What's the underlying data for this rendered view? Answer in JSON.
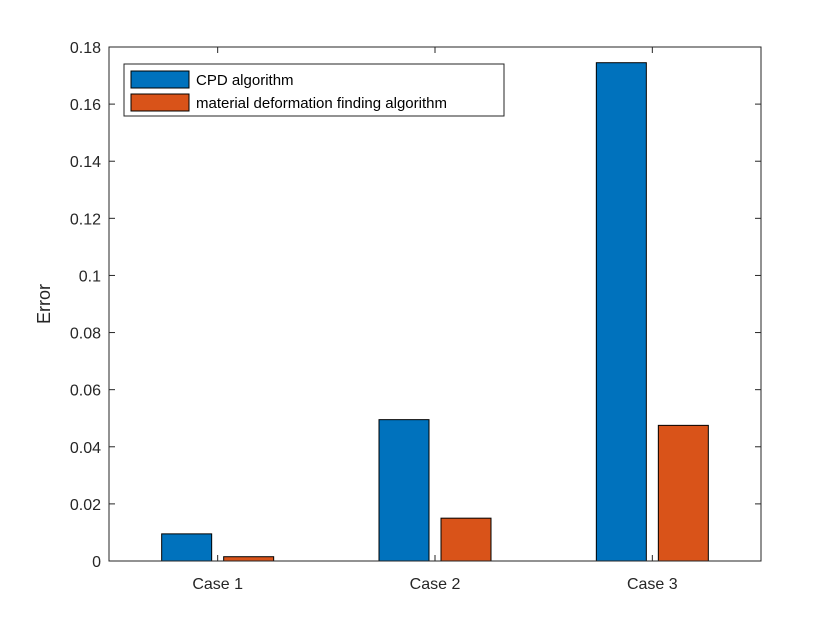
{
  "chart_data": {
    "type": "bar",
    "title": "",
    "xlabel": "",
    "ylabel": "Error",
    "categories": [
      "Case 1",
      "Case 2",
      "Case 3"
    ],
    "series": [
      {
        "name": "CPD algorithm",
        "color": "#0072BD",
        "values": [
          0.0095,
          0.0495,
          0.1745
        ]
      },
      {
        "name": "material deformation finding algorithm",
        "color": "#D95319",
        "values": [
          0.0015,
          0.015,
          0.0475
        ]
      }
    ],
    "ylim": [
      0,
      0.18
    ],
    "yticks": [
      "0",
      "0.02",
      "0.04",
      "0.06",
      "0.08",
      "0.1",
      "0.12",
      "0.14",
      "0.16",
      "0.18"
    ],
    "grid": false,
    "legend_position": "top-left"
  }
}
